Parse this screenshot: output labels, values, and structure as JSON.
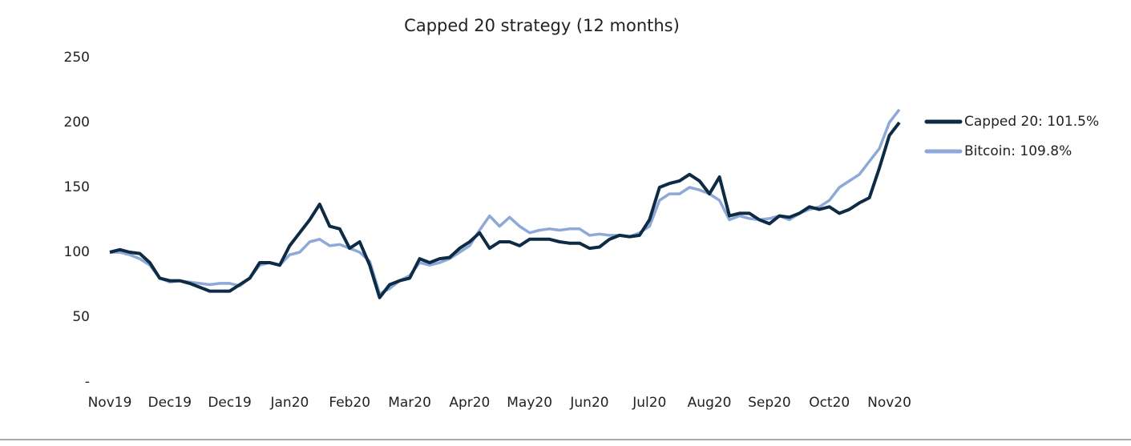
{
  "chart_data": {
    "type": "line",
    "title": "Capped 20 strategy (12 months)",
    "categories": [
      "Nov19",
      null,
      null,
      null,
      null,
      null,
      "Dec19",
      null,
      null,
      null,
      null,
      null,
      "Dec19",
      null,
      null,
      null,
      null,
      null,
      "Jan20",
      null,
      null,
      null,
      null,
      null,
      "Feb20",
      null,
      null,
      null,
      null,
      null,
      "Mar20",
      null,
      null,
      null,
      null,
      null,
      "Apr20",
      null,
      null,
      null,
      null,
      null,
      "May20",
      null,
      null,
      null,
      null,
      null,
      "Jun20",
      null,
      null,
      null,
      null,
      null,
      "Jul20",
      null,
      null,
      null,
      null,
      null,
      "Aug20",
      null,
      null,
      null,
      null,
      null,
      "Sep20",
      null,
      null,
      null,
      null,
      null,
      "Oct20",
      null,
      null,
      null,
      null,
      null,
      "Nov20",
      null
    ],
    "series": [
      {
        "name": "Capped 20: 101.5%",
        "color": "#0d2b45",
        "values": [
          100,
          102,
          100,
          99,
          92,
          80,
          78,
          78,
          76,
          73,
          70,
          70,
          70,
          75,
          80,
          92,
          92,
          90,
          105,
          115,
          125,
          137,
          120,
          118,
          103,
          108,
          90,
          65,
          75,
          78,
          80,
          95,
          92,
          95,
          96,
          103,
          108,
          115,
          103,
          108,
          108,
          105,
          110,
          110,
          110,
          108,
          107,
          107,
          103,
          104,
          110,
          113,
          112,
          113,
          125,
          150,
          153,
          155,
          160,
          155,
          145,
          158,
          128,
          130,
          130,
          125,
          122,
          128,
          127,
          130,
          135,
          133,
          135,
          130,
          133,
          138,
          142,
          165,
          190,
          200
        ]
      },
      {
        "name": "Bitcoin: 109.8%",
        "color": "#8ea9d8",
        "values": [
          100,
          100,
          98,
          95,
          90,
          80,
          77,
          78,
          77,
          76,
          75,
          76,
          76,
          74,
          80,
          90,
          92,
          90,
          98,
          100,
          108,
          110,
          105,
          106,
          103,
          100,
          93,
          68,
          72,
          78,
          82,
          92,
          90,
          92,
          95,
          100,
          105,
          117,
          128,
          120,
          127,
          120,
          115,
          117,
          118,
          117,
          118,
          118,
          113,
          114,
          113,
          113,
          112,
          115,
          120,
          140,
          145,
          145,
          150,
          148,
          145,
          140,
          125,
          128,
          126,
          125,
          126,
          128,
          125,
          130,
          133,
          135,
          140,
          150,
          155,
          160,
          170,
          180,
          200,
          210
        ]
      }
    ],
    "ylim": [
      0,
      250
    ],
    "yticks": [
      {
        "value": 0,
        "label": "-"
      },
      50,
      100,
      150,
      200,
      250
    ],
    "grid": false,
    "legend": "right"
  }
}
